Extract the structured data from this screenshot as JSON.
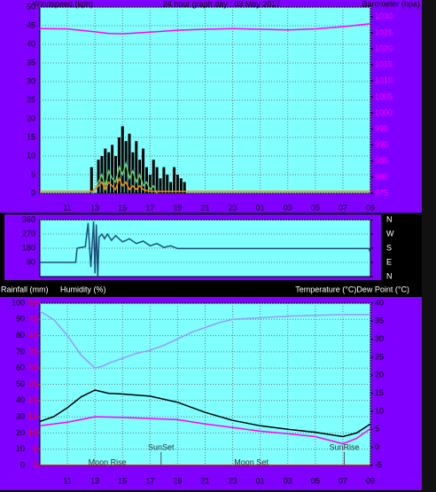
{
  "chart_data": [
    {
      "type": "line",
      "title": "24 hour graph day : 03 May 2017",
      "ylabel": "Windspeed (kph)",
      "y2label": "Barometer (hpa)",
      "xlim": [
        9,
        33
      ],
      "xticks": [
        11,
        13,
        15,
        17,
        19,
        21,
        23,
        {
          "value": 25,
          "label": "01"
        },
        {
          "value": 27,
          "label": "03"
        },
        {
          "value": 29,
          "label": "05"
        },
        {
          "value": 31,
          "label": "07"
        },
        {
          "value": 33,
          "label": "09"
        }
      ],
      "ylim": [
        0,
        50
      ],
      "yticks": [
        0,
        5,
        10,
        15,
        20,
        25,
        30,
        35,
        40,
        45,
        50
      ],
      "y2lim": [
        975,
        1033
      ],
      "y2ticks": [
        975,
        980,
        985,
        990,
        995,
        1000,
        1005,
        1010,
        1015,
        1020,
        1025,
        1030
      ],
      "grid": true,
      "series": [
        {
          "style": "bar",
          "color": "#000000",
          "x": [
            12.75,
            13,
            13.25,
            13.5,
            13.75,
            14,
            14.25,
            14.5,
            14.75,
            15,
            15.25,
            15.5,
            15.75,
            16,
            16.25,
            16.5,
            16.75,
            17,
            17.25,
            17.5,
            17.75,
            18,
            18.25,
            18.5,
            18.75,
            19,
            19.25,
            19.5
          ],
          "values": [
            7,
            0,
            9,
            10,
            12,
            11,
            13,
            10,
            15,
            18,
            14,
            16,
            11,
            14,
            9,
            12,
            7,
            5,
            9,
            7,
            4,
            7,
            5,
            3,
            7,
            5,
            4,
            3
          ]
        },
        {
          "style": "line",
          "color": "#66cc66",
          "x": [
            12.75,
            13,
            13.25,
            13.5,
            13.75,
            14,
            14.25,
            14.5,
            14.75,
            15,
            15.25,
            15.5,
            15.75,
            16,
            16.25,
            16.5,
            16.75,
            17,
            17.25,
            17.5
          ],
          "values": [
            0,
            1,
            3,
            5,
            2,
            6,
            4,
            3,
            7,
            5,
            8,
            4,
            6,
            3,
            5,
            2,
            3,
            1,
            2,
            0
          ]
        },
        {
          "style": "line",
          "color": "#ff8800",
          "x": [
            9,
            12.75,
            13,
            13.25,
            13.5,
            13.75,
            14,
            14.25,
            14.5,
            14.75,
            15,
            15.25,
            15.5,
            15.75,
            16,
            16.25,
            16.5,
            17,
            17.5,
            33
          ],
          "values": [
            0.5,
            0.5,
            1,
            2,
            3,
            1,
            3,
            2,
            1,
            4,
            2,
            3,
            1,
            2,
            1,
            2,
            1,
            0.5,
            0.5,
            0.5
          ]
        },
        {
          "style": "line",
          "color": "#ff00ff",
          "axis": "y2",
          "x": [
            9,
            11,
            13,
            14,
            15,
            17,
            19,
            21,
            23,
            25,
            27,
            29,
            31,
            33
          ],
          "values": [
            1026.3,
            1026.2,
            1025.3,
            1024.8,
            1024.7,
            1025.2,
            1025.8,
            1026.1,
            1026.3,
            1026.1,
            1025.9,
            1026.2,
            1026.9,
            1027.8
          ]
        }
      ]
    },
    {
      "type": "line",
      "xlim": [
        9,
        33
      ],
      "ylim": [
        0,
        360
      ],
      "yticks": [
        90,
        180,
        270,
        360
      ],
      "y2lim": [
        0,
        360
      ],
      "y2ticks": [
        {
          "value": 0,
          "label": "N"
        },
        {
          "value": 90,
          "label": "E"
        },
        {
          "value": 180,
          "label": "S"
        },
        {
          "value": 270,
          "label": "W"
        },
        {
          "value": 360,
          "label": "N"
        }
      ],
      "grid": true,
      "series": [
        {
          "style": "line",
          "color": "#1f4e79",
          "x": [
            9,
            11.6,
            11.7,
            12.3,
            12.5,
            12.7,
            12.9,
            13.0,
            13.1,
            13.2,
            13.3,
            13.5,
            13.7,
            13.9,
            14.2,
            14.5,
            15,
            15.5,
            16,
            16.5,
            17,
            17.5,
            18,
            18.5,
            19,
            21,
            25,
            29,
            32.9,
            33
          ],
          "values": [
            90,
            90,
            180,
            190,
            340,
            60,
            350,
            20,
            330,
            0,
            250,
            270,
            240,
            270,
            230,
            260,
            220,
            240,
            210,
            225,
            195,
            210,
            185,
            195,
            178,
            178,
            178,
            178,
            178,
            150
          ]
        }
      ]
    },
    {
      "type": "line",
      "ylabel": "Humidity (%)",
      "y3label": "Rainfall (mm)",
      "y2label": "Temperature (°C)Dew Point (°C)",
      "xlim": [
        9,
        33
      ],
      "xticks": [
        11,
        13,
        15,
        17,
        19,
        21,
        23,
        {
          "value": 25,
          "label": "01"
        },
        {
          "value": 27,
          "label": "03"
        },
        {
          "value": 29,
          "label": "05"
        },
        {
          "value": 31,
          "label": "07"
        },
        {
          "value": 33,
          "label": "09"
        }
      ],
      "ylim": [
        0,
        100
      ],
      "yticks": [
        0,
        10,
        20,
        30,
        40,
        50,
        60,
        70,
        80,
        90,
        100
      ],
      "y3lim": [
        0,
        50
      ],
      "y3ticks": [
        0,
        5,
        10,
        15,
        20,
        25,
        30,
        35,
        40,
        45,
        50
      ],
      "y2lim": [
        -5,
        40
      ],
      "y2ticks": [
        -5,
        0,
        5,
        10,
        15,
        20,
        25,
        30,
        35,
        40
      ],
      "grid": true,
      "annotations": [
        {
          "x": 13.9,
          "text": "Moon Rise"
        },
        {
          "x": 17.8,
          "text": "SunSet"
        },
        {
          "x": 24.35,
          "text": "Moon Set"
        },
        {
          "x": 31.1,
          "text": "SunRise"
        }
      ],
      "series": [
        {
          "style": "line",
          "color": "#9999ff",
          "x": [
            9,
            10,
            11,
            12,
            12.5,
            13,
            13.5,
            14,
            15,
            16,
            17,
            18,
            19,
            20,
            21,
            22,
            23,
            25,
            27,
            29,
            31,
            33
          ],
          "values": [
            95,
            90,
            80,
            68,
            64,
            60,
            61,
            63,
            66,
            69,
            71,
            74,
            78,
            82,
            85,
            88,
            90,
            91,
            92,
            92.5,
            93,
            93
          ]
        },
        {
          "style": "line",
          "color": "#000000",
          "axis": "y2",
          "x": [
            9,
            10,
            11,
            12,
            13,
            14,
            15,
            17,
            19,
            21,
            23,
            25,
            27,
            29,
            31,
            32,
            33
          ],
          "values": [
            7.2,
            8.5,
            11,
            14,
            15.9,
            15,
            14.8,
            14.2,
            12.5,
            9.7,
            7.5,
            6,
            5,
            4.2,
            3,
            4,
            6.5
          ]
        },
        {
          "style": "line",
          "color": "#ff00ff",
          "axis": "y2",
          "x": [
            9,
            11,
            13,
            15,
            17,
            19,
            21,
            23,
            25,
            27,
            29,
            31,
            32,
            33
          ],
          "values": [
            6,
            7,
            8.5,
            8.3,
            8,
            7.7,
            6.5,
            5.5,
            4.5,
            3.8,
            3,
            1,
            2.5,
            5.2
          ]
        },
        {
          "style": "line",
          "color": "#cc0000",
          "axis": "y3",
          "x": [
            9,
            33
          ],
          "values": [
            0,
            0
          ]
        }
      ]
    }
  ]
}
